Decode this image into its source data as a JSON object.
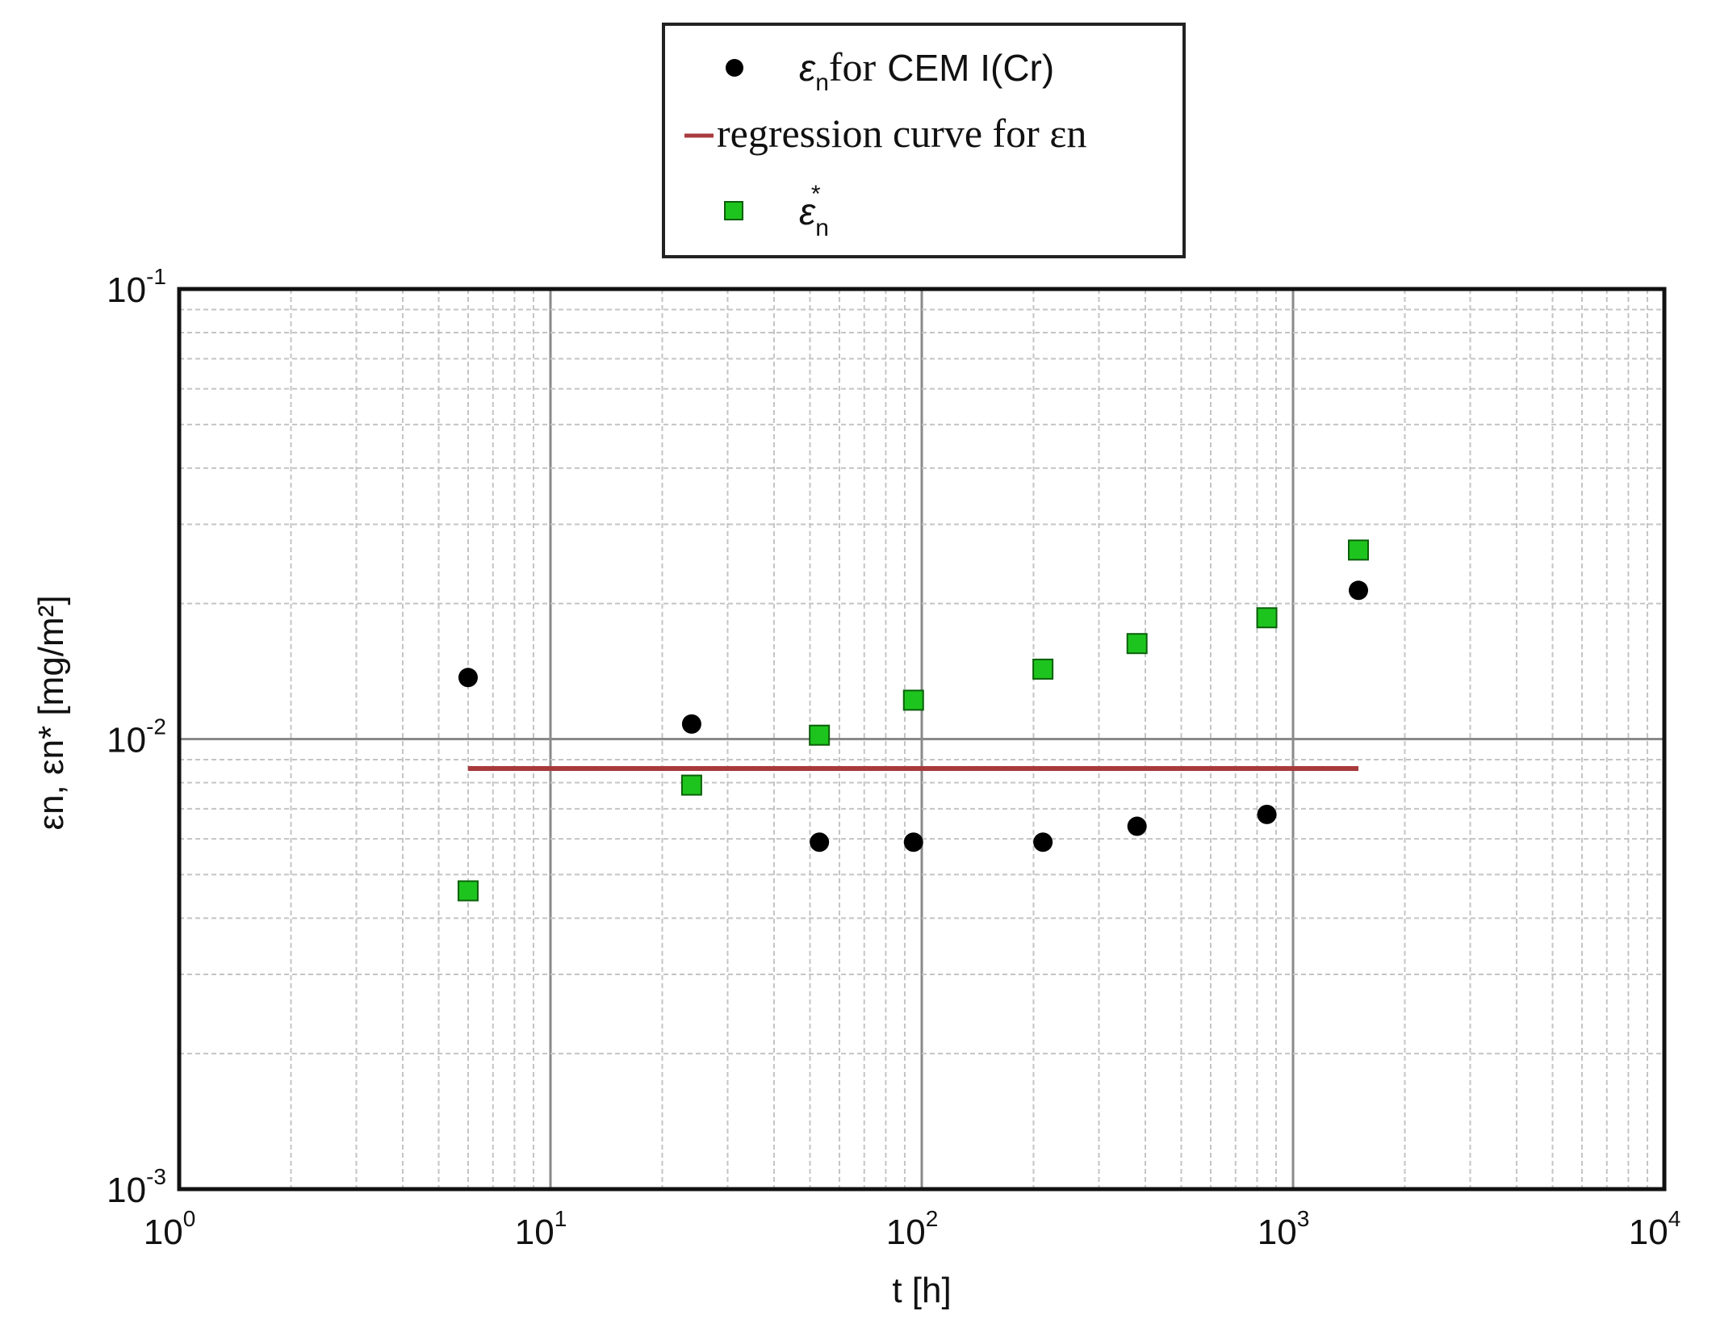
{
  "chart_data": {
    "type": "scatter",
    "title": "",
    "xlabel": "t [h]",
    "ylabel": "εn, εn* [mg/m²]",
    "xscale": "log",
    "yscale": "log",
    "xlim": [
      1,
      10000
    ],
    "ylim": [
      0.001,
      0.1
    ],
    "grid": true,
    "legend_position": "top-center",
    "x_ticks": [
      "10",
      "10",
      "10",
      "10",
      "10"
    ],
    "x_tick_exponents": [
      "0",
      "1",
      "2",
      "3",
      "4"
    ],
    "y_ticks": [
      "10",
      "10",
      "10"
    ],
    "y_tick_exponents": [
      "-3",
      "-2",
      "-1"
    ],
    "legend": {
      "item1_symbol": "ε",
      "item1_sub": "n",
      "item1_rest": "for",
      "item1_text": "CEM I(Cr)",
      "item2_text": "regression curve for εn",
      "item3_symbol": "ε",
      "item3_sub": "n",
      "item3_sup": "*"
    },
    "series": [
      {
        "name": "εn for CEM I(Cr)",
        "marker": "circle",
        "color": "#000000",
        "x": [
          6,
          24,
          53,
          95,
          212,
          380,
          850,
          1500
        ],
        "y": [
          0.0137,
          0.0108,
          0.0059,
          0.0059,
          0.0059,
          0.0064,
          0.0068,
          0.0214
        ]
      },
      {
        "name": "regression curve for εn",
        "marker": "line",
        "color": "#a83a3c",
        "x": [
          6,
          1500
        ],
        "y": [
          0.0086,
          0.0086
        ]
      },
      {
        "name": "εn*",
        "marker": "square",
        "color": "#1ec41e",
        "x": [
          6,
          24,
          53,
          95,
          212,
          380,
          850,
          1500
        ],
        "y": [
          0.0046,
          0.0079,
          0.0102,
          0.0122,
          0.0143,
          0.0163,
          0.0186,
          0.0263
        ]
      }
    ]
  }
}
